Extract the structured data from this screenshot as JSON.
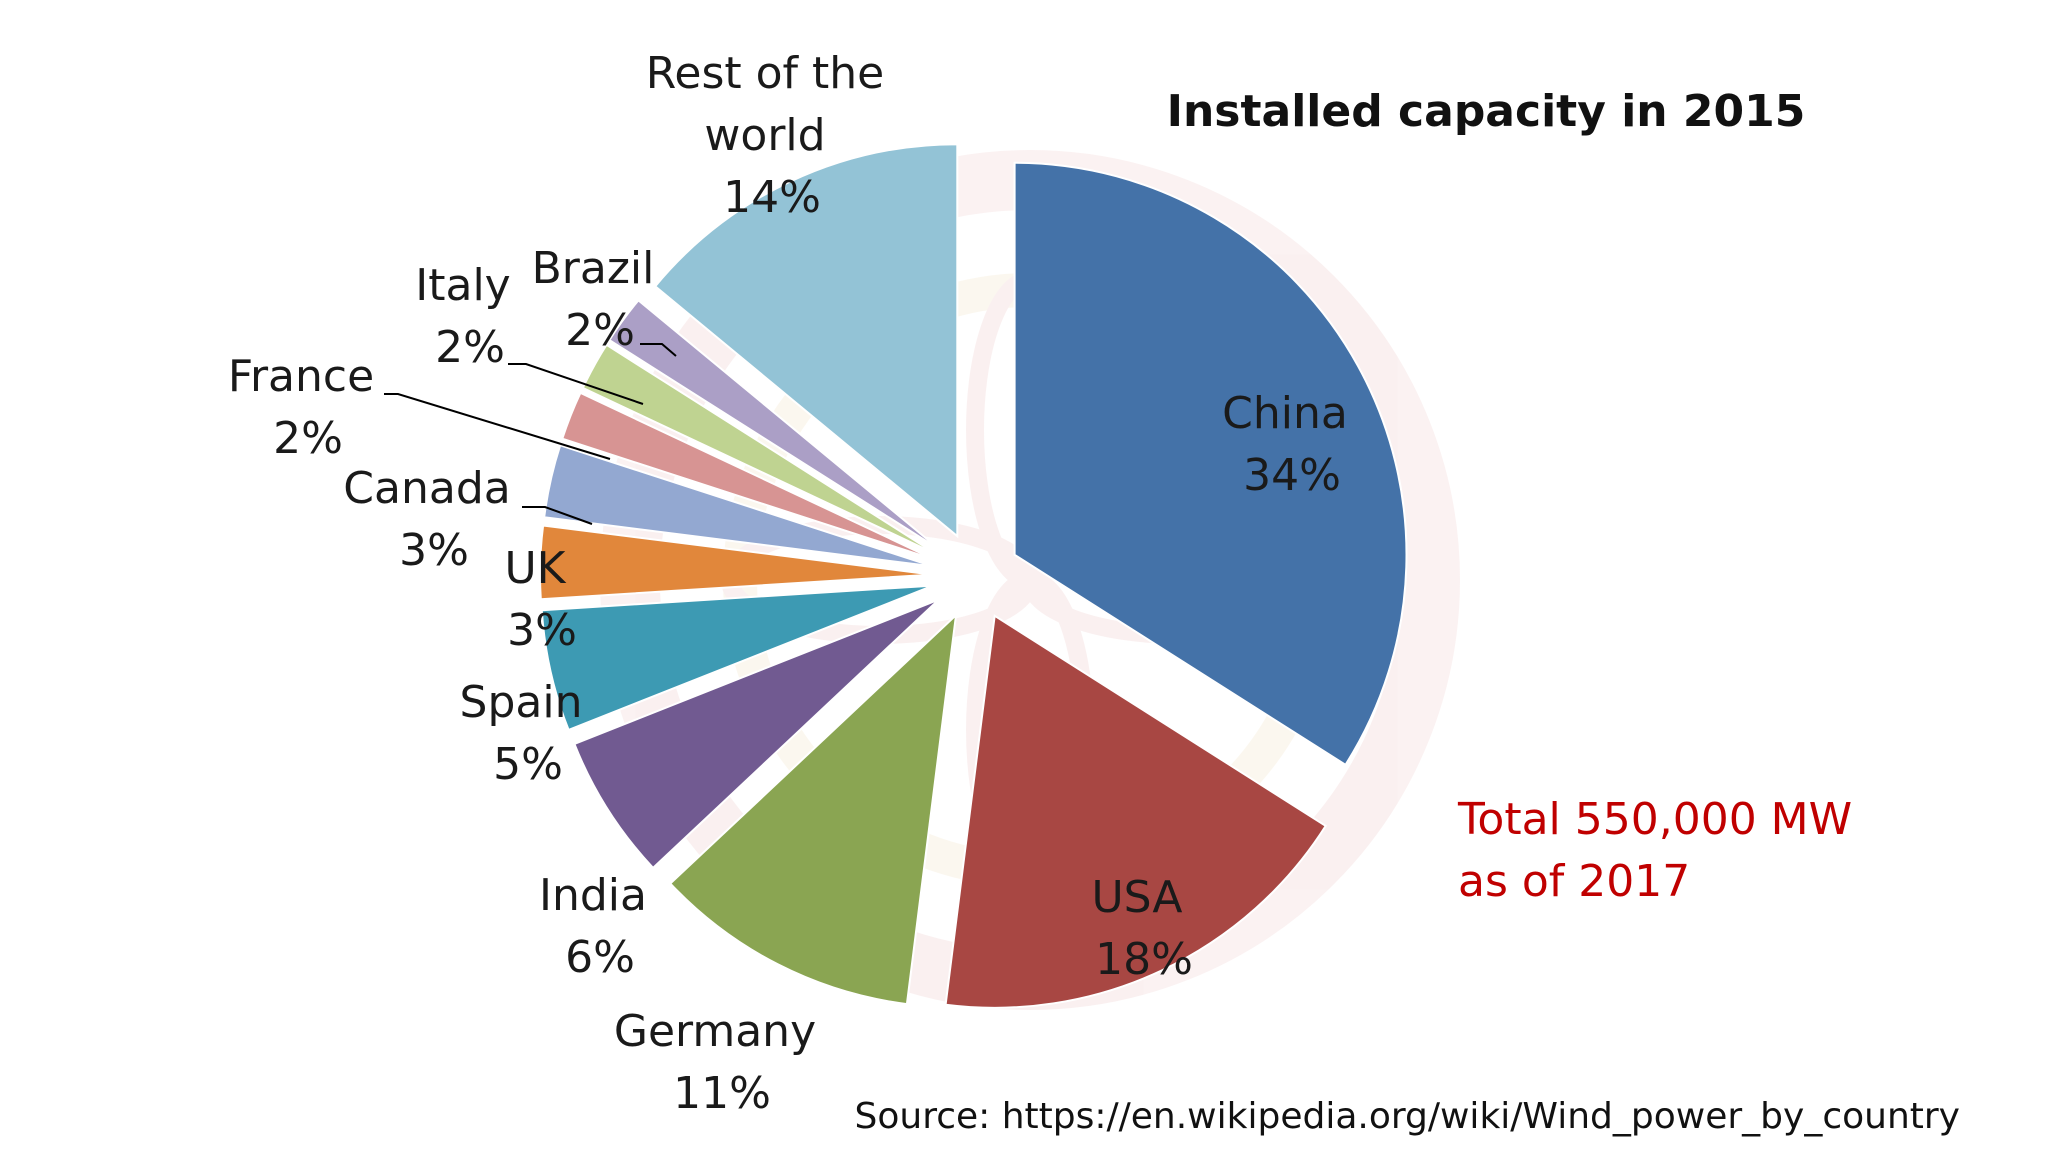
{
  "chart_data": {
    "type": "pie",
    "title": "Installed capacity in 2015",
    "slices": [
      {
        "name": "China",
        "label_line1": "China",
        "label_line2": "34%",
        "value": 34,
        "pct_label": "34%",
        "color": "#4472A8"
      },
      {
        "name": "USA",
        "label_line1": "USA",
        "label_line2": "18%",
        "value": 18,
        "pct_label": "18%",
        "color": "#A84743"
      },
      {
        "name": "Germany",
        "label_line1": "Germany",
        "label_line2": "11%",
        "value": 11,
        "pct_label": "11%",
        "color": "#8AA552"
      },
      {
        "name": "India",
        "label_line1": "India",
        "label_line2": "6%",
        "value": 6,
        "pct_label": "6%",
        "color": "#715A91"
      },
      {
        "name": "Spain",
        "label_line1": "Spain",
        "label_line2": "5%",
        "value": 5,
        "pct_label": "5%",
        "color": "#3D9AB3"
      },
      {
        "name": "UK",
        "label_line1": "UK",
        "label_line2": "3%",
        "value": 3,
        "pct_label": "3%",
        "color": "#E1873B"
      },
      {
        "name": "Canada",
        "label_line1": "Canada",
        "label_line2": "3%",
        "value": 3,
        "pct_label": "3%",
        "color": "#93A8D1"
      },
      {
        "name": "France",
        "label_line1": "France",
        "label_line2": "2%",
        "value": 2,
        "pct_label": "2%",
        "color": "#D79493"
      },
      {
        "name": "Italy",
        "label_line1": "Italy",
        "label_line2": "2%",
        "value": 2,
        "pct_label": "2%",
        "color": "#BFD391"
      },
      {
        "name": "Brazil",
        "label_line1": "Brazil",
        "label_line2": "2%",
        "value": 2,
        "pct_label": "2%",
        "color": "#AB9FC6"
      },
      {
        "name": "Rest of the world",
        "label_line1": "Rest of the",
        "label_line2": "world",
        "label_line3": "14%",
        "value": 14,
        "pct_label": "14%",
        "color": "#93C3D6"
      }
    ],
    "annotation": {
      "line1": "Total 550,000 MW",
      "line2": "as of 2017",
      "color": "#C00000"
    },
    "source": "Source: https://en.wikipedia.org/wiki/Wind_power_by_country"
  }
}
